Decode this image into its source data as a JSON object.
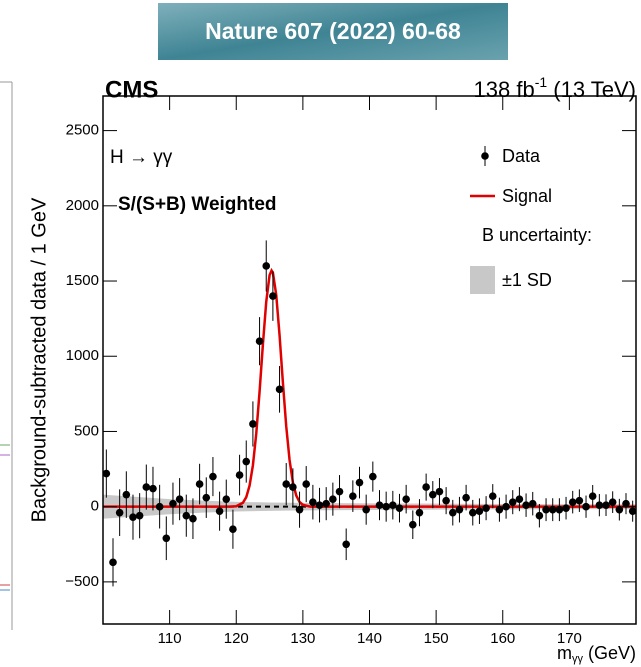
{
  "banner": "Nature 607 (2022) 60-68",
  "chart_data": {
    "type": "scatter",
    "experiment": "CMS",
    "luminosity": [
      "138 fb",
      "-1",
      " (13 TeV)"
    ],
    "annotations": [
      "H → γγ",
      "S/(S+B) Weighted"
    ],
    "legend_title": "B uncertainty:",
    "xlabel": [
      "m",
      "γγ",
      " (GeV)"
    ],
    "ylabel": "Background-subtracted data / 1 GeV",
    "xlim": [
      100,
      180
    ],
    "ylim": [
      -780,
      2730
    ],
    "xticks": [
      110,
      120,
      130,
      140,
      150,
      160,
      170
    ],
    "yticks": [
      {
        "value": -500,
        "label": "−500"
      },
      0,
      500,
      1000,
      1500,
      2000,
      2500
    ],
    "x": [
      100.5,
      101.5,
      102.5,
      103.5,
      104.5,
      105.5,
      106.5,
      107.5,
      108.5,
      109.5,
      110.5,
      111.5,
      112.5,
      113.5,
      114.5,
      115.5,
      116.5,
      117.5,
      118.5,
      119.5,
      120.5,
      121.5,
      122.5,
      123.5,
      124.5,
      125.5,
      126.5,
      127.5,
      128.5,
      129.5,
      130.5,
      131.5,
      132.5,
      133.5,
      134.5,
      135.5,
      136.5,
      137.5,
      138.5,
      139.5,
      140.5,
      141.5,
      142.5,
      143.5,
      144.5,
      145.5,
      146.5,
      147.5,
      148.5,
      149.5,
      150.5,
      151.5,
      152.5,
      153.5,
      154.5,
      155.5,
      156.5,
      157.5,
      158.5,
      159.5,
      160.5,
      161.5,
      162.5,
      163.5,
      164.5,
      165.5,
      166.5,
      167.5,
      168.5,
      169.5,
      170.5,
      171.5,
      172.5,
      173.5,
      174.5,
      175.5,
      176.5,
      177.5,
      178.5,
      179.5
    ],
    "series": [
      {
        "name": "Data",
        "color": "#000000",
        "values": [
          220,
          -370,
          -40,
          80,
          -70,
          -60,
          130,
          120,
          0,
          -210,
          20,
          50,
          -60,
          -80,
          150,
          60,
          200,
          -30,
          50,
          -150,
          210,
          300,
          550,
          1100,
          1600,
          1400,
          780,
          150,
          130,
          -20,
          150,
          30,
          10,
          20,
          50,
          100,
          -250,
          70,
          160,
          -20,
          200,
          10,
          0,
          10,
          -10,
          50,
          -120,
          -40,
          130,
          80,
          100,
          40,
          -40,
          -20,
          60,
          -40,
          -30,
          -10,
          70,
          -20,
          0,
          30,
          50,
          10,
          20,
          -60,
          -20,
          -20,
          -20,
          -10,
          30,
          40,
          0,
          70,
          10,
          10,
          30,
          -20,
          20,
          -30
        ],
        "errors": [
          160,
          160,
          155,
          155,
          150,
          150,
          150,
          145,
          145,
          145,
          140,
          140,
          140,
          135,
          135,
          135,
          130,
          130,
          130,
          130,
          135,
          140,
          150,
          160,
          170,
          165,
          155,
          140,
          125,
          120,
          120,
          115,
          115,
          110,
          110,
          110,
          105,
          105,
          105,
          100,
          100,
          100,
          100,
          95,
          95,
          95,
          95,
          90,
          90,
          90,
          90,
          90,
          85,
          85,
          85,
          85,
          85,
          80,
          80,
          80,
          80,
          80,
          80,
          78,
          78,
          78,
          76,
          76,
          76,
          75,
          75,
          75,
          74,
          74,
          74,
          72,
          72,
          72,
          70,
          70
        ]
      },
      {
        "name": "Signal",
        "color": "#e00000",
        "x": [
          100,
          118,
          119,
          120,
          121,
          121.5,
          122,
          122.5,
          123,
          123.5,
          124,
          124.5,
          125,
          125.3,
          125.5,
          126,
          126.5,
          127,
          127.5,
          128,
          128.5,
          129,
          129.5,
          130,
          131,
          132,
          180
        ],
        "values": [
          0,
          0,
          0,
          3,
          26,
          63,
          140,
          275,
          485,
          764,
          1079,
          1362,
          1539,
          1570,
          1556,
          1408,
          1140,
          826,
          535,
          311,
          161,
          75,
          31,
          12,
          1,
          0,
          0
        ]
      },
      {
        "name": "±1 SD",
        "color": "#c8c8c8",
        "x": [
          100,
          105,
          110,
          115,
          120,
          125,
          130,
          140,
          150,
          160,
          170,
          180
        ],
        "values": [
          80,
          65,
          50,
          40,
          32,
          28,
          25,
          22,
          20,
          18,
          17,
          16
        ]
      }
    ]
  }
}
